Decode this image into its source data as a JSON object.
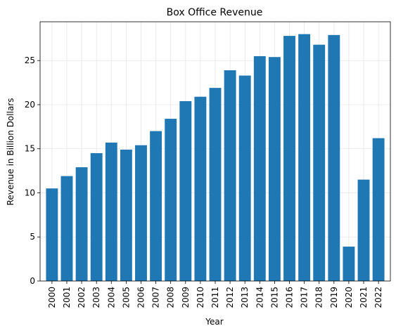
{
  "chart_data": {
    "type": "bar",
    "title": "Box Office Revenue",
    "xlabel": "Year",
    "ylabel": "Revenue in Billion Dollars",
    "categories": [
      "2000",
      "2001",
      "2002",
      "2003",
      "2004",
      "2005",
      "2006",
      "2007",
      "2008",
      "2009",
      "2010",
      "2011",
      "2012",
      "2013",
      "2014",
      "2015",
      "2016",
      "2017",
      "2018",
      "2019",
      "2020",
      "2021",
      "2022"
    ],
    "values": [
      10.5,
      11.9,
      12.9,
      14.5,
      15.7,
      14.9,
      15.4,
      17.0,
      18.4,
      20.4,
      20.9,
      21.9,
      23.9,
      23.3,
      25.5,
      25.4,
      27.8,
      28.0,
      26.8,
      27.9,
      3.9,
      11.5,
      16.2
    ],
    "ylim": [
      0,
      29.4
    ],
    "yticks": [
      0,
      5,
      10,
      15,
      20,
      25
    ],
    "grid": true,
    "bar_color": "#1f77b4",
    "grid_color": "#e6e6e6"
  }
}
